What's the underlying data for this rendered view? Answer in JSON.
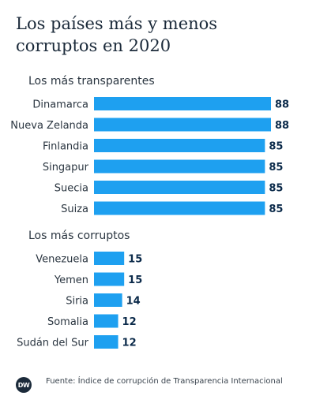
{
  "title": "Los países más y menos corruptos en 2020",
  "source": "Fuente: Índice de corrupción de Transparencia Internacional",
  "logo_text": "DW",
  "colors": {
    "bar": "#1ea0f0",
    "value": "#0b2a4a",
    "label": "#2a3540"
  },
  "chart_data": [
    {
      "type": "bar",
      "title": "Los más transparentes",
      "categories": [
        "Dinamarca",
        "Nueva Zelanda",
        "Finlandia",
        "Singapur",
        "Suecia",
        "Suiza"
      ],
      "values": [
        88,
        88,
        85,
        85,
        85,
        85
      ]
    },
    {
      "type": "bar",
      "title": "Los más corruptos",
      "categories": [
        "Venezuela",
        "Yemen",
        "Siria",
        "Somalia",
        "Sudán del Sur"
      ],
      "values": [
        15,
        15,
        14,
        12,
        12
      ]
    }
  ]
}
